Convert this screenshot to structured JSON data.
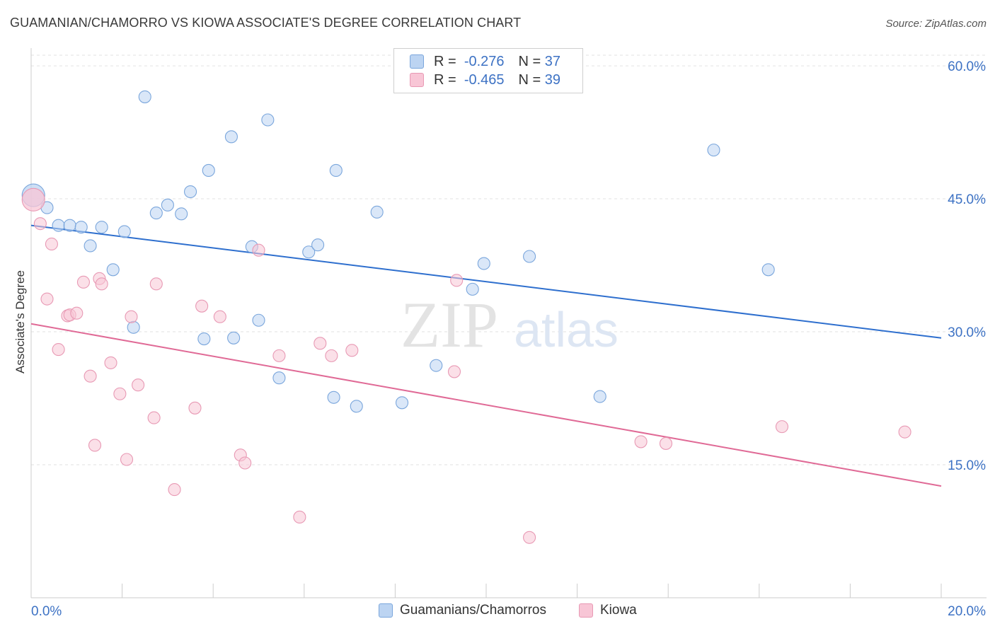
{
  "title": "GUAMANIAN/CHAMORRO VS KIOWA ASSOCIATE'S DEGREE CORRELATION CHART",
  "source": "Source: ZipAtlas.com",
  "legend": {
    "r_label": "R =",
    "n_label": "N =",
    "blue": {
      "r": "-0.276",
      "n": "37"
    },
    "pink": {
      "r": "-0.465",
      "n": "39"
    }
  },
  "colors": {
    "blue_fill": "#bcd4f2",
    "blue_stroke": "#7aa6dc",
    "blue_line": "#2e6fce",
    "pink_fill": "#f8c6d6",
    "pink_stroke": "#e899b4",
    "pink_line": "#e06a96",
    "tick_label": "#3d72c4"
  },
  "chart_data": {
    "type": "scatter",
    "xlabel": "",
    "ylabel": "Associate's Degree",
    "xlim": [
      0,
      20
    ],
    "ylim": [
      0,
      62
    ],
    "x_tick_labels": [
      "0.0%",
      "20.0%"
    ],
    "y_ticks": [
      15,
      30,
      45,
      60
    ],
    "y_tick_labels": [
      "15.0%",
      "30.0%",
      "45.0%",
      "60.0%"
    ],
    "grid": true,
    "legend_placement": "top-center",
    "series": [
      {
        "name": "Guamanians/Chamorros",
        "color": "#bcd4f2",
        "points": [
          [
            0.05,
            45.4
          ],
          [
            0.35,
            44.0
          ],
          [
            0.6,
            42.0
          ],
          [
            0.85,
            42.0
          ],
          [
            1.1,
            41.8
          ],
          [
            1.3,
            39.7
          ],
          [
            1.55,
            41.8
          ],
          [
            1.8,
            37.0
          ],
          [
            2.05,
            41.3
          ],
          [
            2.25,
            30.5
          ],
          [
            2.5,
            56.5
          ],
          [
            2.75,
            43.4
          ],
          [
            3.0,
            44.3
          ],
          [
            3.3,
            43.3
          ],
          [
            3.5,
            45.8
          ],
          [
            3.8,
            29.2
          ],
          [
            3.9,
            48.2
          ],
          [
            4.45,
            29.3
          ],
          [
            4.4,
            52.0
          ],
          [
            4.85,
            39.6
          ],
          [
            5.0,
            31.3
          ],
          [
            5.2,
            53.9
          ],
          [
            5.45,
            24.8
          ],
          [
            6.1,
            39.0
          ],
          [
            6.3,
            39.8
          ],
          [
            6.65,
            22.6
          ],
          [
            6.7,
            48.2
          ],
          [
            7.15,
            21.6
          ],
          [
            7.6,
            43.5
          ],
          [
            8.15,
            22.0
          ],
          [
            8.9,
            26.2
          ],
          [
            9.7,
            34.8
          ],
          [
            9.95,
            37.7
          ],
          [
            10.95,
            38.5
          ],
          [
            12.5,
            22.7
          ],
          [
            15.0,
            50.5
          ],
          [
            16.2,
            37.0
          ]
        ],
        "trend": {
          "x": [
            0,
            20
          ],
          "y": [
            42.0,
            29.3
          ]
        }
      },
      {
        "name": "Kiowa",
        "color": "#f8c6d6",
        "points": [
          [
            0.05,
            44.9
          ],
          [
            0.2,
            42.2
          ],
          [
            0.35,
            33.7
          ],
          [
            0.45,
            39.9
          ],
          [
            0.6,
            28.0
          ],
          [
            0.8,
            31.8
          ],
          [
            0.85,
            31.9
          ],
          [
            1.0,
            32.1
          ],
          [
            1.15,
            35.6
          ],
          [
            1.3,
            25.0
          ],
          [
            1.4,
            17.2
          ],
          [
            1.5,
            36.0
          ],
          [
            1.55,
            35.4
          ],
          [
            1.75,
            26.5
          ],
          [
            1.95,
            23.0
          ],
          [
            2.1,
            15.6
          ],
          [
            2.2,
            31.7
          ],
          [
            2.35,
            24.0
          ],
          [
            2.7,
            20.3
          ],
          [
            2.75,
            35.4
          ],
          [
            3.15,
            12.2
          ],
          [
            3.6,
            21.4
          ],
          [
            3.75,
            32.9
          ],
          [
            4.15,
            31.7
          ],
          [
            4.6,
            16.1
          ],
          [
            4.7,
            15.2
          ],
          [
            5.0,
            39.2
          ],
          [
            5.45,
            27.3
          ],
          [
            5.9,
            9.1
          ],
          [
            6.35,
            28.7
          ],
          [
            6.6,
            27.3
          ],
          [
            7.05,
            27.9
          ],
          [
            9.3,
            25.5
          ],
          [
            9.35,
            35.8
          ],
          [
            10.95,
            6.8
          ],
          [
            13.4,
            17.6
          ],
          [
            13.95,
            17.4
          ],
          [
            16.5,
            19.3
          ],
          [
            19.2,
            18.7
          ]
        ],
        "trend": {
          "x": [
            0,
            20
          ],
          "y": [
            30.9,
            12.6
          ]
        }
      }
    ]
  }
}
